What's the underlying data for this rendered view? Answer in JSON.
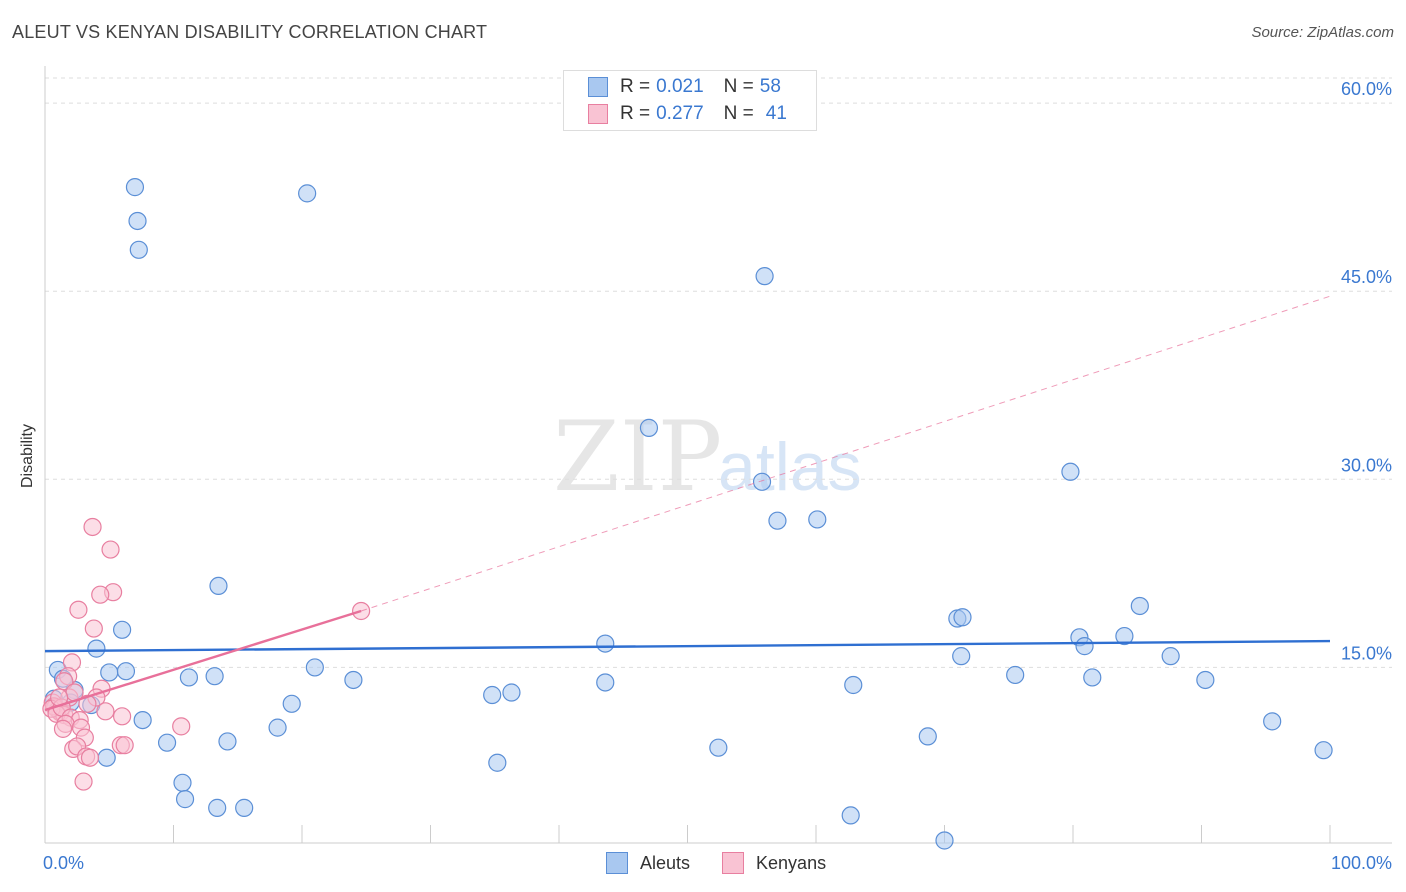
{
  "title": "ALEUT VS KENYAN DISABILITY CORRELATION CHART",
  "source": "Source: ZipAtlas.com",
  "watermark": {
    "zip": "ZIP",
    "atlas": "atlas"
  },
  "legend_top": [
    {
      "r_label": "R =",
      "r_value": "0.021",
      "n_label": "N =",
      "n_value": "58",
      "color": "#a9c8f0",
      "border": "#5b8fd6"
    },
    {
      "r_label": "R =",
      "r_value": "0.277",
      "n_label": "N =",
      "n_value": "41",
      "color": "#f9c3d3",
      "border": "#e87fa0"
    }
  ],
  "bottom_legend": [
    {
      "label": "Aleuts",
      "color": "#a9c8f0",
      "border": "#5b8fd6"
    },
    {
      "label": "Kenyans",
      "color": "#f9c3d3",
      "border": "#e87fa0"
    }
  ],
  "chart_data": {
    "type": "scatter",
    "ylabel": "Disability",
    "xlim": [
      0,
      100
    ],
    "ylim": [
      1.0,
      62.0
    ],
    "x_tick_labels": {
      "0": "0.0%",
      "100": "100.0%"
    },
    "y_ticks": [
      15,
      30,
      45,
      60
    ],
    "y_tick_labels": [
      "15.0%",
      "30.0%",
      "45.0%",
      "60.0%"
    ],
    "grid": "horizontal dashed",
    "series": [
      {
        "name": "Aleuts",
        "color": "#a9c8f0",
        "edge": "#5b8fd6",
        "points": [
          [
            7.0,
            53.3
          ],
          [
            20.4,
            52.8
          ],
          [
            7.3,
            48.3
          ],
          [
            56.0,
            46.2
          ],
          [
            47.0,
            34.1
          ],
          [
            55.8,
            29.8
          ],
          [
            79.8,
            30.6
          ],
          [
            57.0,
            26.7
          ],
          [
            60.1,
            26.8
          ],
          [
            13.5,
            21.5
          ],
          [
            6.0,
            18.0
          ],
          [
            71.0,
            18.9
          ],
          [
            71.4,
            19.0
          ],
          [
            85.2,
            19.9
          ],
          [
            4.0,
            16.5
          ],
          [
            43.6,
            16.9
          ],
          [
            80.5,
            17.4
          ],
          [
            84.0,
            17.5
          ],
          [
            80.9,
            16.7
          ],
          [
            1.0,
            14.8
          ],
          [
            5.0,
            14.6
          ],
          [
            6.3,
            14.7
          ],
          [
            21.0,
            15.0
          ],
          [
            1.4,
            14.1
          ],
          [
            11.2,
            14.2
          ],
          [
            13.2,
            14.3
          ],
          [
            71.3,
            15.9
          ],
          [
            87.6,
            15.9
          ],
          [
            75.5,
            14.4
          ],
          [
            81.5,
            14.2
          ],
          [
            2.3,
            13.2
          ],
          [
            24.0,
            14.0
          ],
          [
            36.3,
            13.0
          ],
          [
            34.8,
            12.8
          ],
          [
            43.6,
            13.8
          ],
          [
            62.9,
            13.6
          ],
          [
            90.3,
            14.0
          ],
          [
            2.0,
            12.2
          ],
          [
            3.6,
            12.0
          ],
          [
            19.2,
            12.1
          ],
          [
            0.7,
            12.5
          ],
          [
            7.6,
            10.8
          ],
          [
            18.1,
            10.2
          ],
          [
            95.5,
            10.7
          ],
          [
            14.2,
            9.1
          ],
          [
            9.5,
            9.0
          ],
          [
            68.7,
            9.5
          ],
          [
            52.4,
            8.6
          ],
          [
            99.5,
            8.4
          ],
          [
            4.8,
            7.8
          ],
          [
            35.2,
            7.4
          ],
          [
            10.7,
            5.8
          ],
          [
            10.9,
            4.5
          ],
          [
            13.4,
            3.8
          ],
          [
            15.5,
            3.8
          ],
          [
            62.7,
            3.2
          ],
          [
            70.0,
            1.2
          ],
          [
            7.2,
            50.6
          ]
        ]
      },
      {
        "name": "Kenyans",
        "color": "#f9c3d3",
        "edge": "#e87fa0",
        "points": [
          [
            3.7,
            26.2
          ],
          [
            5.1,
            24.4
          ],
          [
            5.3,
            21.0
          ],
          [
            4.3,
            20.8
          ],
          [
            2.6,
            19.6
          ],
          [
            24.6,
            19.5
          ],
          [
            3.8,
            18.1
          ],
          [
            2.1,
            15.4
          ],
          [
            1.8,
            14.3
          ],
          [
            1.5,
            13.9
          ],
          [
            1.9,
            12.6
          ],
          [
            0.6,
            12.2
          ],
          [
            0.8,
            11.8
          ],
          [
            1.0,
            11.6
          ],
          [
            1.2,
            11.4
          ],
          [
            0.7,
            11.9
          ],
          [
            1.5,
            11.2
          ],
          [
            0.5,
            11.7
          ],
          [
            0.9,
            11.3
          ],
          [
            1.3,
            11.8
          ],
          [
            2.0,
            11.0
          ],
          [
            2.7,
            10.8
          ],
          [
            1.6,
            10.5
          ],
          [
            2.8,
            10.2
          ],
          [
            1.4,
            10.1
          ],
          [
            3.1,
            9.4
          ],
          [
            2.2,
            8.5
          ],
          [
            2.5,
            8.7
          ],
          [
            3.2,
            7.9
          ],
          [
            3.5,
            7.8
          ],
          [
            5.9,
            8.8
          ],
          [
            6.2,
            8.8
          ],
          [
            3.0,
            5.9
          ],
          [
            10.6,
            10.3
          ],
          [
            4.4,
            13.3
          ],
          [
            4.0,
            12.6
          ],
          [
            3.3,
            12.1
          ],
          [
            2.3,
            13.0
          ],
          [
            1.1,
            12.6
          ],
          [
            4.7,
            11.5
          ],
          [
            6.0,
            11.1
          ]
        ]
      }
    ],
    "trendlines": [
      {
        "series": "Aleuts",
        "x": [
          0,
          100
        ],
        "y": [
          16.3,
          17.1
        ],
        "style": "solid"
      },
      {
        "series": "Kenyans",
        "x": [
          0,
          24.6
        ],
        "y": [
          11.6,
          19.5
        ],
        "style": "solid"
      },
      {
        "series": "Kenyans",
        "x": [
          24.6,
          100
        ],
        "y": [
          19.5,
          44.6
        ],
        "style": "dashed"
      }
    ]
  }
}
